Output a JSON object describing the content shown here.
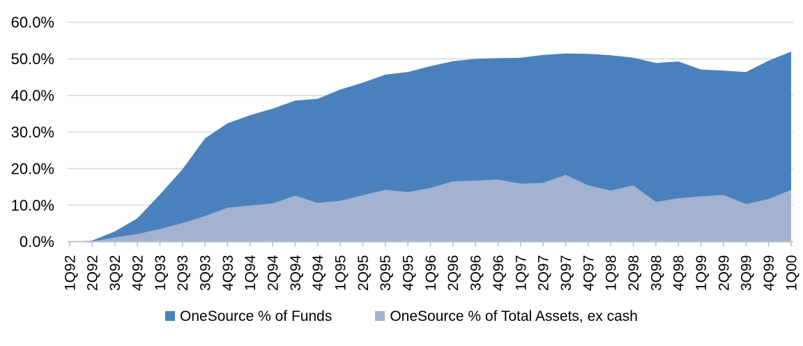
{
  "chart_data": {
    "type": "area",
    "title": "",
    "xlabel": "",
    "ylabel": "",
    "categories": [
      "1Q92",
      "2Q92",
      "3Q92",
      "4Q92",
      "1Q93",
      "2Q93",
      "3Q93",
      "4Q93",
      "1Q94",
      "2Q94",
      "3Q94",
      "4Q94",
      "1Q95",
      "2Q95",
      "3Q95",
      "4Q95",
      "1Q96",
      "2Q96",
      "3Q96",
      "4Q96",
      "1Q97",
      "2Q97",
      "3Q97",
      "4Q97",
      "1Q98",
      "2Q98",
      "3Q98",
      "4Q98",
      "1Q99",
      "2Q99",
      "3Q99",
      "4Q99",
      "1Q00"
    ],
    "series": [
      {
        "name": "OneSource % of Funds",
        "color": "#4A81BC",
        "values": [
          0.0,
          0.3,
          2.8,
          6.4,
          12.9,
          19.8,
          28.3,
          32.4,
          34.6,
          36.4,
          38.6,
          39.1,
          41.6,
          43.5,
          45.7,
          46.4,
          48.0,
          49.4,
          50.0,
          50.2,
          50.3,
          51.1,
          51.5,
          51.4,
          51.0,
          50.3,
          48.9,
          49.3,
          47.1,
          46.8,
          46.4,
          49.5,
          52.0
        ]
      },
      {
        "name": "OneSource % of Total Assets, ex cash",
        "color": "#A3B2D0",
        "values": [
          0.0,
          0.1,
          1.2,
          2.1,
          3.5,
          5.1,
          7.0,
          9.3,
          9.9,
          10.5,
          12.6,
          10.6,
          11.2,
          12.7,
          14.2,
          13.6,
          14.7,
          16.5,
          16.7,
          17.0,
          15.9,
          16.1,
          18.3,
          15.4,
          14.0,
          15.4,
          10.9,
          11.9,
          12.4,
          12.8,
          10.3,
          11.7,
          14.2
        ]
      }
    ],
    "stacking": "overlapping",
    "ylim": [
      0,
      60
    ],
    "y_tick_step": 10,
    "y_tick_labels": [
      "0.0%",
      "10.0%",
      "20.0%",
      "30.0%",
      "40.0%",
      "50.0%",
      "60.0%"
    ],
    "grid": "horizontal",
    "gridline_color": "#D9D9D9",
    "axis_color": "#C0C0C0",
    "text_color": "#000000",
    "legend_position": "bottom-center"
  }
}
